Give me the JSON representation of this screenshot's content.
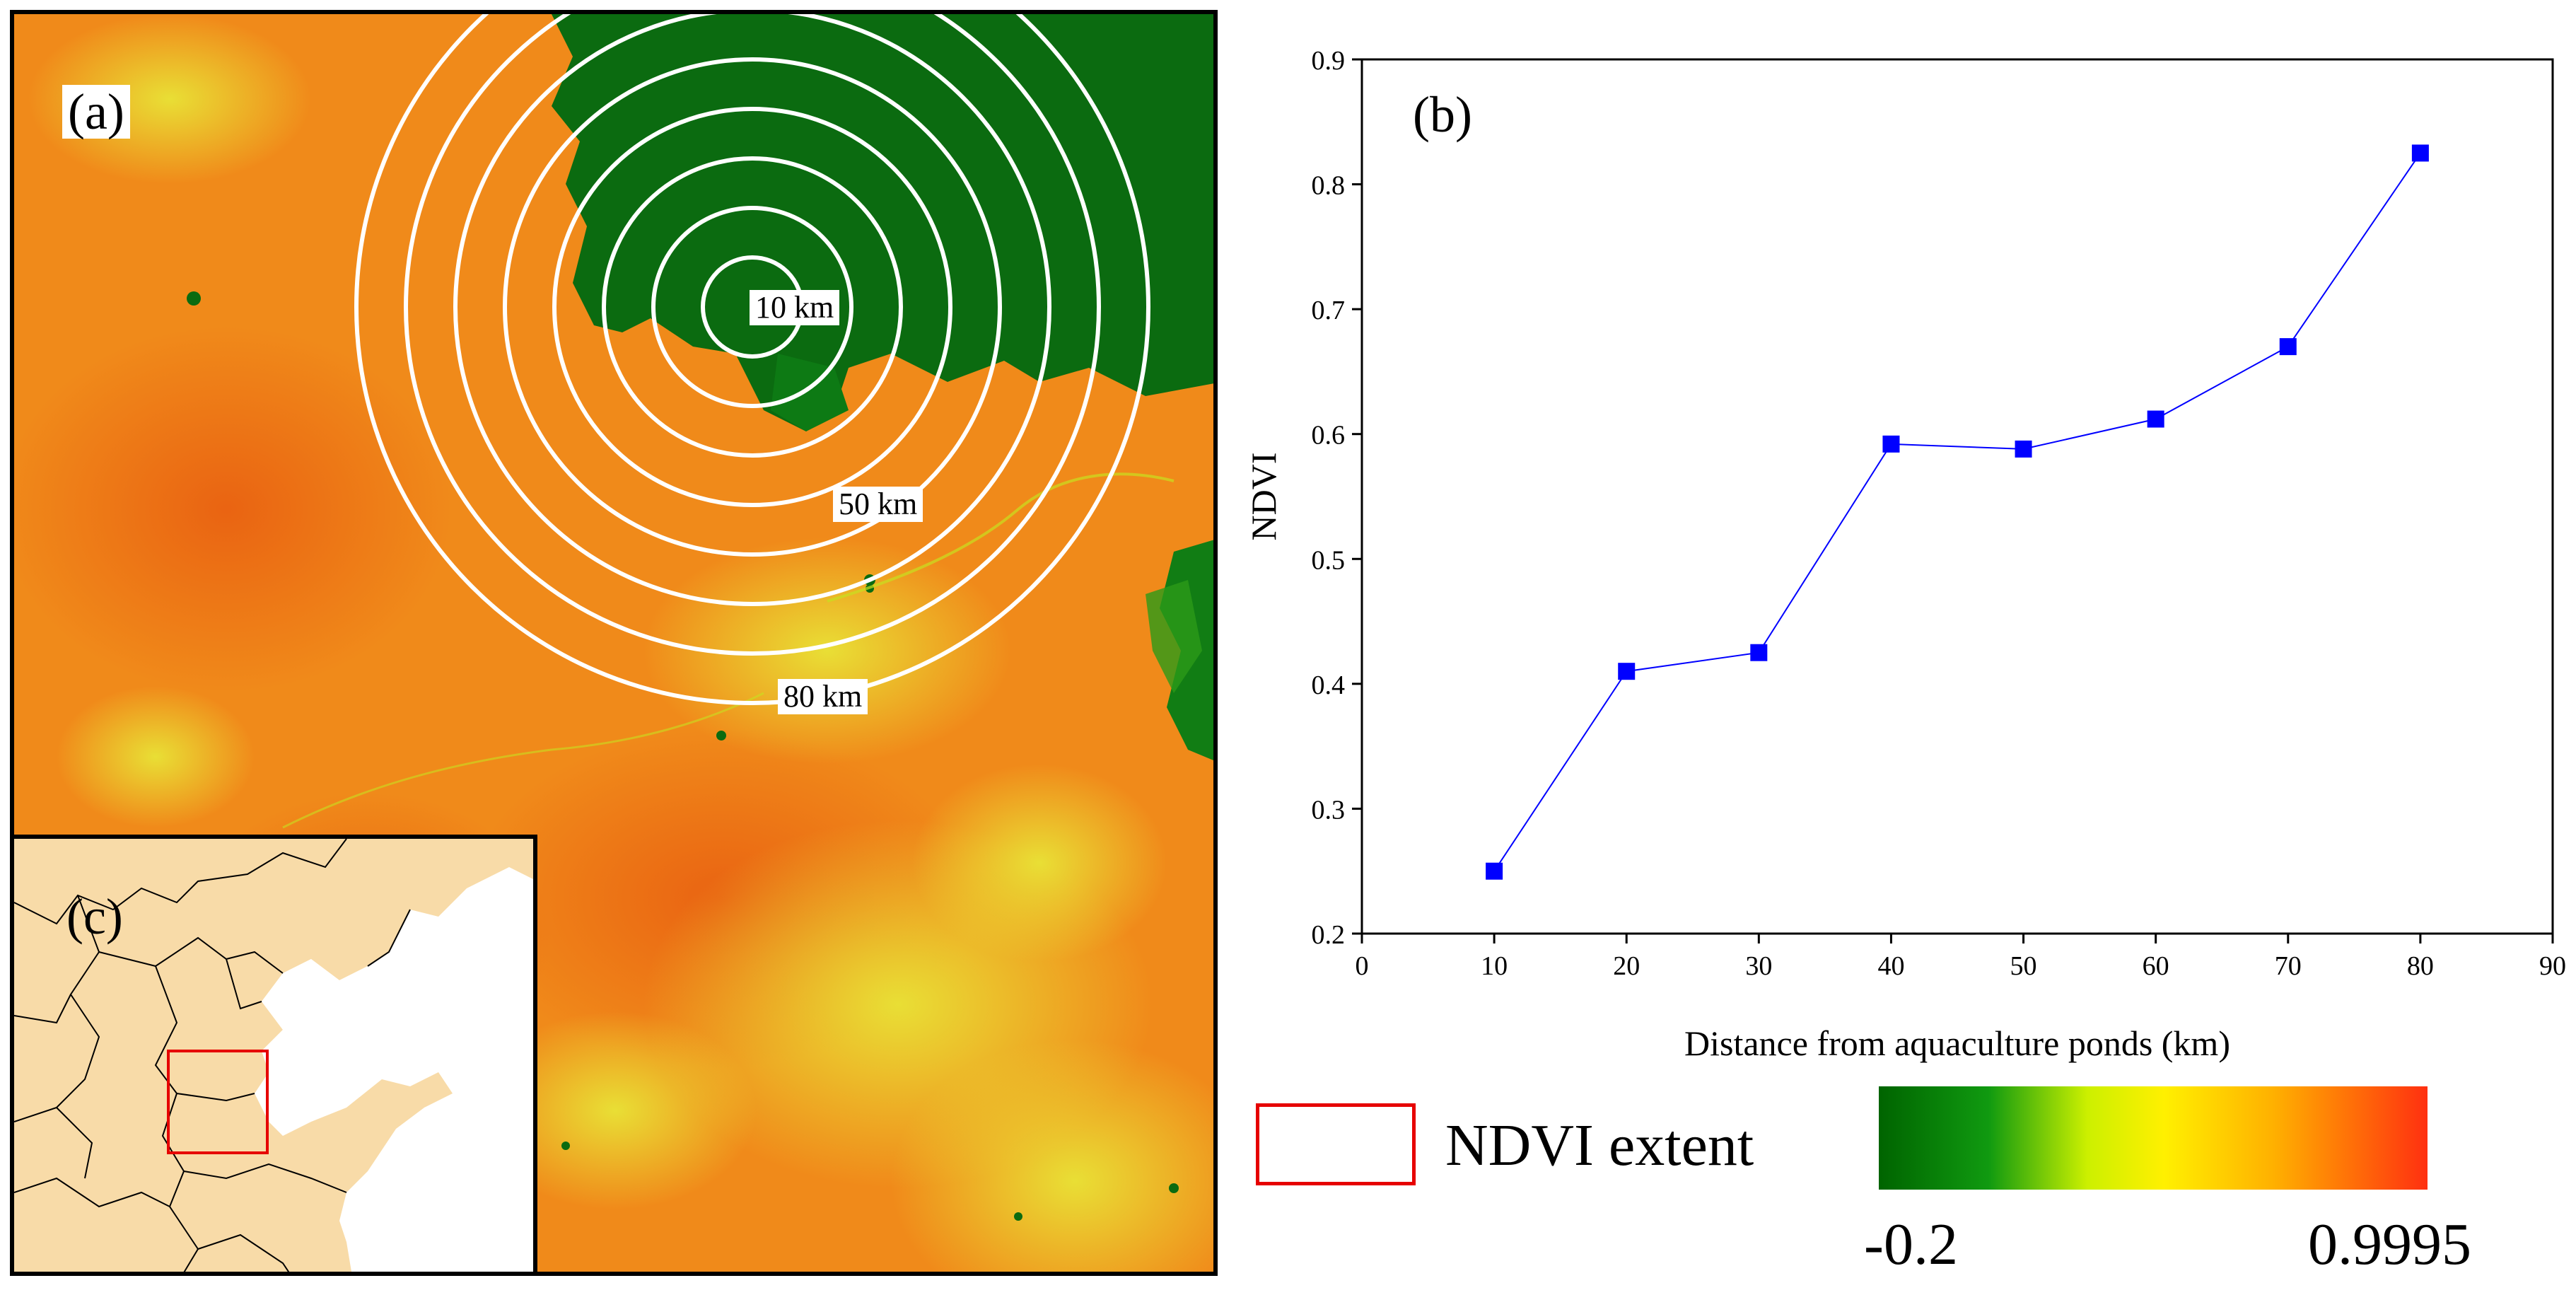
{
  "map_panel": {
    "label": "(a)",
    "ring_labels": [
      "10 km",
      "50 km",
      "80 km"
    ]
  },
  "inset_panel": {
    "label": "(c)"
  },
  "chart_panel": {
    "label": "(b)"
  },
  "chart_data": {
    "type": "line",
    "title": "",
    "xlabel": "Distance from aquaculture ponds (km)",
    "ylabel": "NDVI",
    "xlim": [
      0,
      90
    ],
    "ylim": [
      0.2,
      0.9
    ],
    "xticks": [
      0,
      10,
      20,
      30,
      40,
      50,
      60,
      70,
      80,
      90
    ],
    "yticks": [
      0.2,
      0.3,
      0.4,
      0.5,
      0.6,
      0.7,
      0.8,
      0.9
    ],
    "x": [
      10,
      20,
      30,
      40,
      50,
      60,
      70,
      80
    ],
    "series": [
      {
        "name": "NDVI",
        "values": [
          0.25,
          0.41,
          0.425,
          0.592,
          0.588,
          0.612,
          0.67,
          0.825
        ],
        "color": "#0000ff"
      }
    ]
  },
  "legend": {
    "extent_label": "NDVI extent",
    "extent_color": "#e60000",
    "colorbar_min": "-0.2",
    "colorbar_max": "0.9995"
  }
}
